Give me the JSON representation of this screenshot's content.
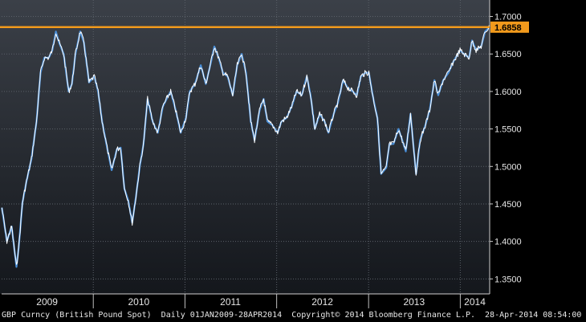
{
  "chart_data": {
    "type": "line",
    "security": "GBP Curncy",
    "series": [
      {
        "name": "GBP Curncy (British Pound Spot)",
        "color": "#4a8fd8",
        "x": [
          "2009-01-02",
          "2009-01-22",
          "2009-02-10",
          "2009-03-01",
          "2009-03-10",
          "2009-03-25",
          "2009-04-10",
          "2009-04-30",
          "2009-05-20",
          "2009-06-05",
          "2009-06-20",
          "2009-07-08",
          "2009-07-22",
          "2009-08-05",
          "2009-08-18",
          "2009-09-05",
          "2009-09-25",
          "2009-10-08",
          "2009-10-22",
          "2009-11-10",
          "2009-11-25",
          "2009-12-15",
          "2010-01-05",
          "2010-01-20",
          "2010-02-05",
          "2010-02-25",
          "2010-03-15",
          "2010-04-05",
          "2010-04-20",
          "2010-05-05",
          "2010-05-20",
          "2010-06-05",
          "2010-06-20",
          "2010-07-05",
          "2010-07-20",
          "2010-08-05",
          "2010-08-25",
          "2010-09-15",
          "2010-10-05",
          "2010-10-20",
          "2010-11-05",
          "2010-11-25",
          "2010-12-15",
          "2011-01-05",
          "2011-01-20",
          "2011-02-10",
          "2011-03-05",
          "2011-03-25",
          "2011-04-15",
          "2011-04-28",
          "2011-05-15",
          "2011-06-01",
          "2011-06-20",
          "2011-07-10",
          "2011-07-28",
          "2011-08-15",
          "2011-09-01",
          "2011-09-20",
          "2011-10-05",
          "2011-10-25",
          "2011-11-10",
          "2011-11-25",
          "2011-12-15",
          "2012-01-05",
          "2012-01-20",
          "2012-02-10",
          "2012-03-01",
          "2012-03-20",
          "2012-04-10",
          "2012-04-30",
          "2012-05-15",
          "2012-06-01",
          "2012-06-20",
          "2012-07-10",
          "2012-07-25",
          "2012-08-15",
          "2012-09-01",
          "2012-09-21",
          "2012-10-10",
          "2012-10-30",
          "2012-11-15",
          "2012-12-01",
          "2012-12-20",
          "2013-01-02",
          "2013-01-20",
          "2013-02-05",
          "2013-02-20",
          "2013-03-12",
          "2013-03-25",
          "2013-04-10",
          "2013-04-30",
          "2013-05-15",
          "2013-05-29",
          "2013-06-17",
          "2013-07-09",
          "2013-07-25",
          "2013-08-15",
          "2013-09-01",
          "2013-09-20",
          "2013-10-05",
          "2013-10-25",
          "2013-11-15",
          "2013-12-05",
          "2013-12-31",
          "2014-01-15",
          "2014-02-05",
          "2014-02-17",
          "2014-03-05",
          "2014-03-25",
          "2014-04-10",
          "2014-04-28"
        ],
        "values": [
          1.445,
          1.4,
          1.42,
          1.366,
          1.392,
          1.452,
          1.48,
          1.51,
          1.56,
          1.625,
          1.645,
          1.645,
          1.655,
          1.68,
          1.665,
          1.65,
          1.6,
          1.61,
          1.65,
          1.68,
          1.665,
          1.612,
          1.62,
          1.6,
          1.56,
          1.525,
          1.495,
          1.523,
          1.525,
          1.47,
          1.455,
          1.425,
          1.46,
          1.5,
          1.53,
          1.59,
          1.56,
          1.545,
          1.58,
          1.59,
          1.6,
          1.575,
          1.545,
          1.565,
          1.6,
          1.61,
          1.635,
          1.61,
          1.64,
          1.66,
          1.645,
          1.625,
          1.62,
          1.595,
          1.635,
          1.65,
          1.625,
          1.56,
          1.535,
          1.575,
          1.59,
          1.56,
          1.555,
          1.545,
          1.56,
          1.565,
          1.58,
          1.6,
          1.595,
          1.62,
          1.595,
          1.55,
          1.57,
          1.56,
          1.545,
          1.57,
          1.585,
          1.615,
          1.605,
          1.6,
          1.595,
          1.62,
          1.625,
          1.625,
          1.59,
          1.565,
          1.49,
          1.498,
          1.53,
          1.53,
          1.55,
          1.535,
          1.52,
          1.57,
          1.49,
          1.535,
          1.555,
          1.575,
          1.615,
          1.595,
          1.615,
          1.625,
          1.64,
          1.655,
          1.65,
          1.645,
          1.668,
          1.655,
          1.66,
          1.68,
          1.686
        ]
      }
    ],
    "reference_line": {
      "value": 1.6858,
      "label": "1.6858",
      "color": "#f29a1c"
    },
    "y_ticks": [
      1.35,
      1.4,
      1.45,
      1.5,
      1.55,
      1.6,
      1.65,
      1.7
    ],
    "y_tick_labels": [
      "1.3500",
      "1.4000",
      "1.4500",
      "1.5000",
      "1.5500",
      "1.6000",
      "1.6500",
      "1.7000"
    ],
    "ylim": [
      1.33,
      1.722
    ],
    "xlim": [
      "2009-01-01",
      "2014-04-28"
    ],
    "x_tick_labels": [
      "2009",
      "2010",
      "2011",
      "2012",
      "2013",
      "2014"
    ],
    "x_tick_dates": [
      "2009-07-01",
      "2010-07-01",
      "2011-07-01",
      "2012-07-01",
      "2013-07-01",
      "2014-02-28"
    ],
    "year_boundaries": [
      "2010-01-01",
      "2011-01-01",
      "2012-01-01",
      "2013-01-01",
      "2014-01-01"
    ],
    "grid": true,
    "y_axis_side": "right",
    "background": "dark gradient"
  },
  "footer": {
    "ticker": "GBP Curncy (British Pound Spot)",
    "period": "Daily 01JAN2009-28APR2014",
    "copyright": "Copyright© 2014 Bloomberg Finance L.P.",
    "timestamp": "28-Apr-2014 08:54:00"
  }
}
